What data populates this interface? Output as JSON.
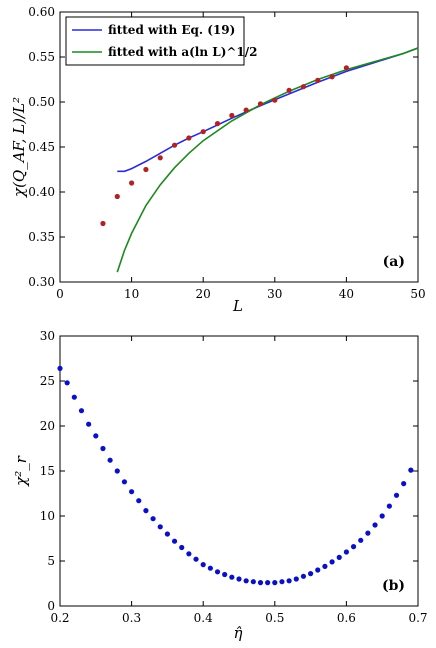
{
  "chart_data": [
    {
      "type": "line",
      "panel_label": "(a)",
      "xlabel": "L",
      "ylabel": "χ(Q_AF, L)/L²",
      "xlim": [
        0,
        50
      ],
      "ylim": [
        0.3,
        0.6
      ],
      "xticks": [
        "0",
        "10",
        "20",
        "30",
        "40",
        "50"
      ],
      "yticks": [
        "0.30",
        "0.35",
        "0.40",
        "0.45",
        "0.50",
        "0.55",
        "0.60"
      ],
      "legend_position": "top-left",
      "series": [
        {
          "name": "fitted with Eq. (19)",
          "kind": "line",
          "color": "#2c2cd9",
          "x": [
            8,
            9,
            10,
            12,
            14,
            16,
            18,
            20,
            24,
            28,
            32,
            36,
            40,
            44,
            48,
            50
          ],
          "y": [
            0.423,
            0.423,
            0.426,
            0.434,
            0.443,
            0.452,
            0.46,
            0.467,
            0.482,
            0.496,
            0.509,
            0.522,
            0.534,
            0.544,
            0.554,
            0.56
          ]
        },
        {
          "name": "fitted with a(ln L)^1/2",
          "kind": "line",
          "color": "#1d8a1d",
          "x": [
            8,
            9,
            10,
            12,
            14,
            16,
            18,
            20,
            24,
            28,
            32,
            36,
            40,
            44,
            48,
            50
          ],
          "y": [
            0.311,
            0.335,
            0.354,
            0.385,
            0.408,
            0.427,
            0.443,
            0.457,
            0.479,
            0.497,
            0.512,
            0.525,
            0.536,
            0.545,
            0.554,
            0.56
          ]
        },
        {
          "name": "",
          "kind": "scatter",
          "color": "#b22222",
          "x": [
            6,
            8,
            10,
            12,
            14,
            16,
            18,
            20,
            22,
            24,
            26,
            28,
            30,
            32,
            34,
            36,
            38,
            40
          ],
          "y": [
            0.365,
            0.395,
            0.41,
            0.425,
            0.438,
            0.452,
            0.46,
            0.467,
            0.476,
            0.485,
            0.491,
            0.498,
            0.502,
            0.513,
            0.517,
            0.524,
            0.528,
            0.538
          ]
        }
      ]
    },
    {
      "type": "scatter",
      "panel_label": "(b)",
      "xlabel": "η̂",
      "ylabel": "χ²_r",
      "xlim": [
        0.2,
        0.7
      ],
      "ylim": [
        0,
        30
      ],
      "xticks": [
        "0.2",
        "0.3",
        "0.4",
        "0.5",
        "0.6",
        "0.7"
      ],
      "yticks": [
        "0",
        "5",
        "10",
        "15",
        "20",
        "25",
        "30"
      ],
      "series": [
        {
          "name": "",
          "color": "#0a10c8",
          "x": [
            0.2,
            0.21,
            0.22,
            0.23,
            0.24,
            0.25,
            0.26,
            0.27,
            0.28,
            0.29,
            0.3,
            0.31,
            0.32,
            0.33,
            0.34,
            0.35,
            0.36,
            0.37,
            0.38,
            0.39,
            0.4,
            0.41,
            0.42,
            0.43,
            0.44,
            0.45,
            0.46,
            0.47,
            0.48,
            0.49,
            0.5,
            0.51,
            0.52,
            0.53,
            0.54,
            0.55,
            0.56,
            0.57,
            0.58,
            0.59,
            0.6,
            0.61,
            0.62,
            0.63,
            0.64,
            0.65,
            0.66,
            0.67,
            0.68,
            0.69
          ],
          "y": [
            26.4,
            24.8,
            23.2,
            21.7,
            20.2,
            18.9,
            17.5,
            16.2,
            15.0,
            13.8,
            12.7,
            11.7,
            10.6,
            9.7,
            8.8,
            8.0,
            7.2,
            6.5,
            5.8,
            5.2,
            4.6,
            4.2,
            3.8,
            3.5,
            3.2,
            3.0,
            2.8,
            2.7,
            2.6,
            2.6,
            2.6,
            2.7,
            2.8,
            3.0,
            3.3,
            3.6,
            4.0,
            4.4,
            4.9,
            5.4,
            6.0,
            6.6,
            7.3,
            8.1,
            9.0,
            10.0,
            11.1,
            12.3,
            13.6,
            15.1
          ]
        }
      ]
    }
  ]
}
